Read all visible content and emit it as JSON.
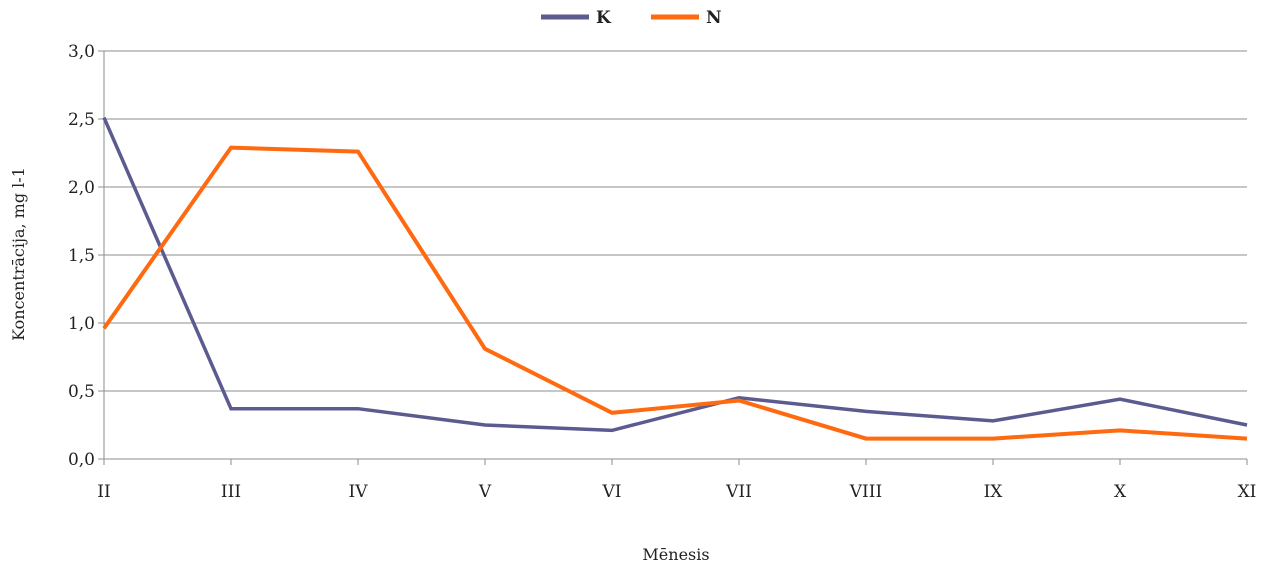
{
  "chart_data": {
    "type": "line",
    "title": "",
    "xlabel": "Mēnesis",
    "ylabel": "Koncentrācija, mg l-1",
    "categories": [
      "II",
      "III",
      "IV",
      "V",
      "VI",
      "VII",
      "VIII",
      "IX",
      "X",
      "XI"
    ],
    "y_tick_labels": [
      "0,0",
      "0,5",
      "1,0",
      "1,5",
      "2,0",
      "2,5",
      "3,0"
    ],
    "ylim": [
      0,
      3
    ],
    "grid": true,
    "legend_position": "top-center",
    "series": [
      {
        "name": "K",
        "color": "#5b5b8f",
        "values": [
          2.51,
          0.37,
          0.37,
          0.25,
          0.21,
          0.45,
          0.35,
          0.28,
          0.44,
          0.25
        ]
      },
      {
        "name": "N",
        "color": "#ff6a10",
        "values": [
          0.96,
          2.29,
          2.26,
          0.81,
          0.34,
          0.43,
          0.15,
          0.15,
          0.21,
          0.15
        ]
      }
    ]
  }
}
